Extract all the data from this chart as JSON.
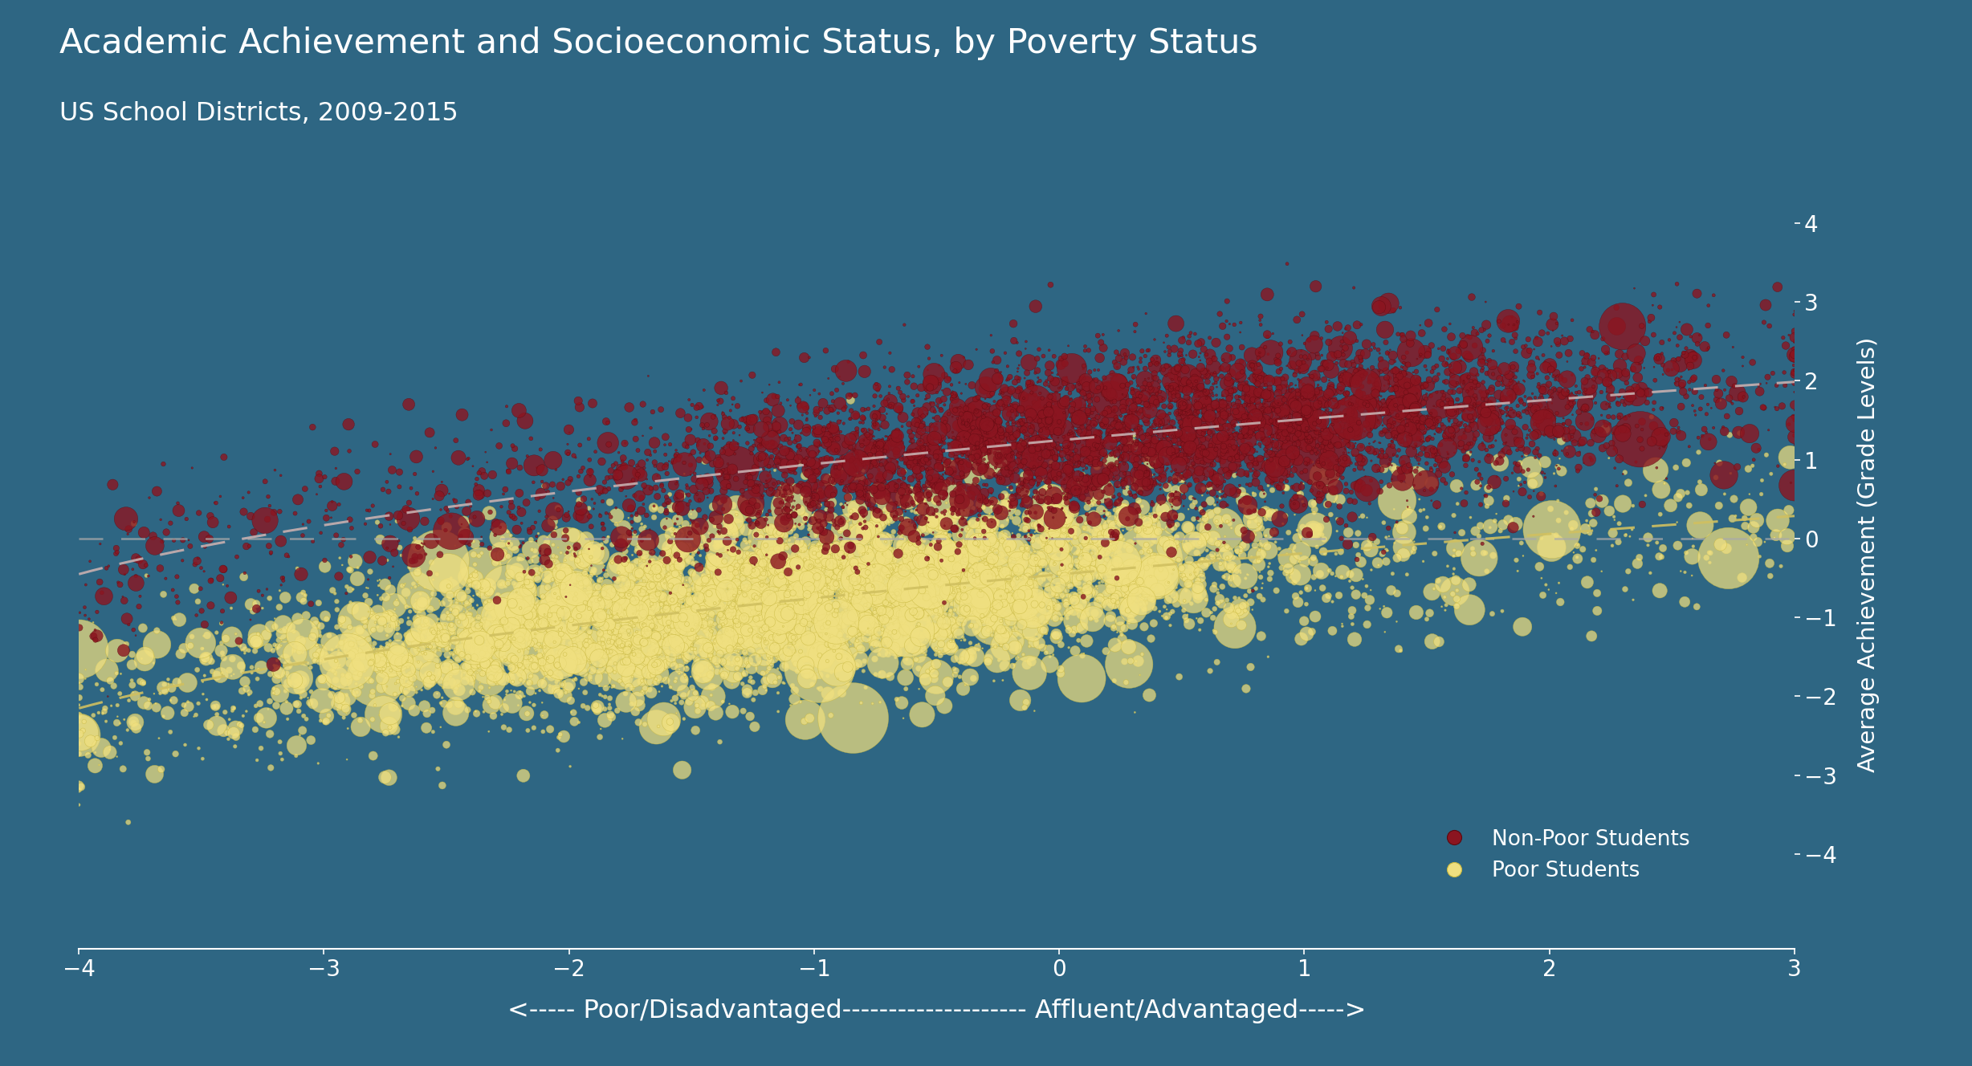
{
  "title": "Academic Achievement and Socioeconomic Status, by Poverty Status",
  "subtitle": "US School Districts, 2009-2015",
  "xlabel": "<----- Poor/Disadvantaged-------------------- Affluent/Advantaged----->",
  "ylabel": "Average Achievement (Grade Levels)",
  "background_color": "#2e6683",
  "text_color": "#ffffff",
  "xlim": [
    -4,
    3
  ],
  "ylim": [
    -5.2,
    4.8
  ],
  "yticks": [
    -4,
    -3,
    -2,
    -1,
    0,
    1,
    2,
    3,
    4
  ],
  "xticks": [
    -4,
    -3,
    -2,
    -1,
    0,
    1,
    2,
    3
  ],
  "poor_color": "#f0e080",
  "poor_edge_color": "#c8b840",
  "nonpoor_color": "#8b1520",
  "nonpoor_edge_color": "#5a0a10",
  "hline_color": "#aaaaaa",
  "nonpoor_trend_color": "#c8b0b0",
  "poor_trend_color": "#d0c060",
  "n_poor": 7000,
  "n_nonpoor": 6000,
  "seed": 42
}
